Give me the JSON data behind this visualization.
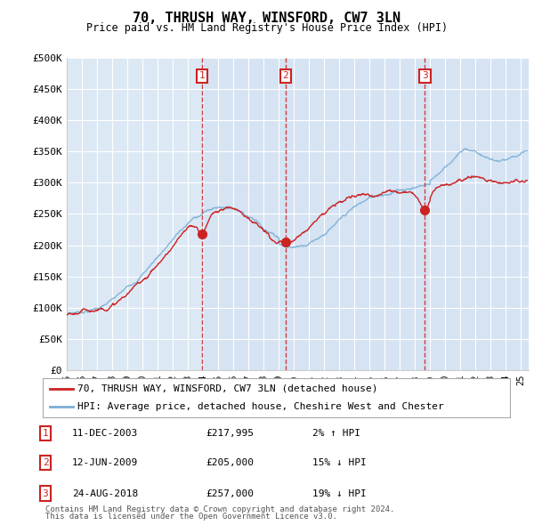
{
  "title": "70, THRUSH WAY, WINSFORD, CW7 3LN",
  "subtitle": "Price paid vs. HM Land Registry's House Price Index (HPI)",
  "ylabel_ticks": [
    "£0",
    "£50K",
    "£100K",
    "£150K",
    "£200K",
    "£250K",
    "£300K",
    "£350K",
    "£400K",
    "£450K",
    "£500K"
  ],
  "ytick_values": [
    0,
    50000,
    100000,
    150000,
    200000,
    250000,
    300000,
    350000,
    400000,
    450000,
    500000
  ],
  "ylim": [
    0,
    500000
  ],
  "xlim_start": 1995.0,
  "xlim_end": 2025.5,
  "xtick_years": [
    1995,
    1996,
    1997,
    1998,
    1999,
    2000,
    2001,
    2002,
    2003,
    2004,
    2005,
    2006,
    2007,
    2008,
    2009,
    2010,
    2011,
    2012,
    2013,
    2014,
    2015,
    2016,
    2017,
    2018,
    2019,
    2020,
    2021,
    2022,
    2023,
    2024,
    2025
  ],
  "hpi_color": "#7bafd4",
  "price_color": "#cc2222",
  "vline_color": "#cc2222",
  "plot_bg_color": "#dce9f5",
  "grid_color": "#ffffff",
  "purchases": [
    {
      "label": "1",
      "year": 2003.95,
      "price": 217995,
      "date": "11-DEC-2003",
      "hpi_diff": "2% ↑ HPI",
      "vline_style": "dashed"
    },
    {
      "label": "2",
      "year": 2009.45,
      "price": 205000,
      "date": "12-JUN-2009",
      "hpi_diff": "15% ↓ HPI",
      "vline_style": "dashed"
    },
    {
      "label": "3",
      "year": 2018.65,
      "price": 257000,
      "date": "24-AUG-2018",
      "hpi_diff": "19% ↓ HPI",
      "vline_style": "dashed"
    }
  ],
  "legend_line1": "70, THRUSH WAY, WINSFORD, CW7 3LN (detached house)",
  "legend_line2": "HPI: Average price, detached house, Cheshire West and Chester",
  "footer1": "Contains HM Land Registry data © Crown copyright and database right 2024.",
  "footer2": "This data is licensed under the Open Government Licence v3.0."
}
